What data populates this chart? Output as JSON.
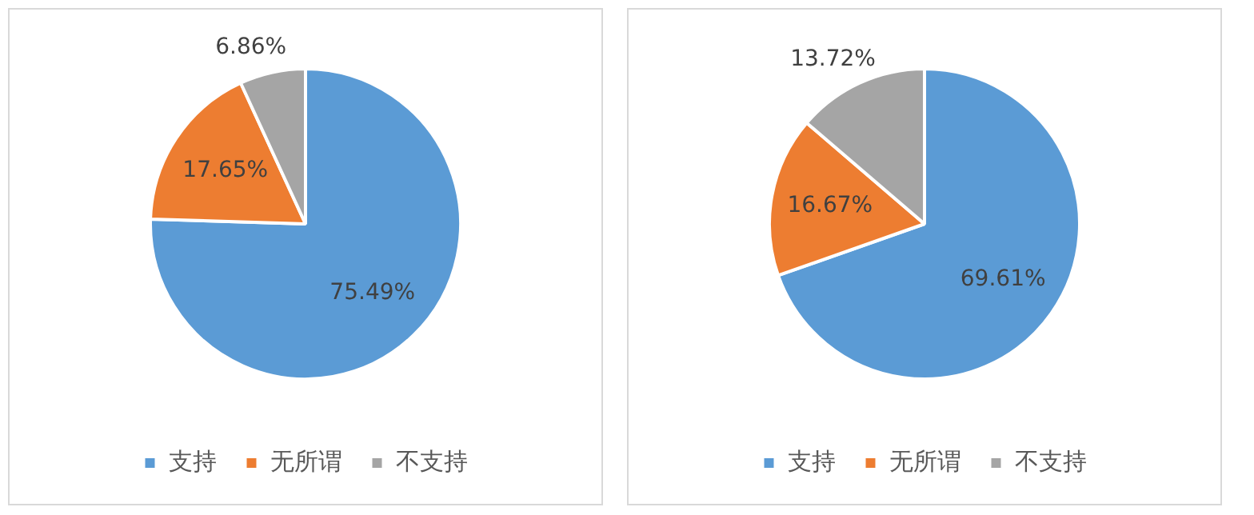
{
  "chart_data": [
    {
      "type": "pie",
      "categories": [
        "支持",
        "无所谓",
        "不支持"
      ],
      "values": [
        75.49,
        17.65,
        6.86
      ],
      "colors": [
        "#5b9bd5",
        "#ed7d31",
        "#a5a5a5"
      ],
      "value_labels": [
        "75.49%",
        "17.65%",
        "6.86%"
      ],
      "legend": "bottom"
    },
    {
      "type": "pie",
      "categories": [
        "支持",
        "无所谓",
        "不支持"
      ],
      "values": [
        69.61,
        16.67,
        13.72
      ],
      "colors": [
        "#5b9bd5",
        "#ed7d31",
        "#a5a5a5"
      ],
      "value_labels": [
        "69.61%",
        "16.67%",
        "13.72%"
      ],
      "legend": "bottom"
    }
  ]
}
